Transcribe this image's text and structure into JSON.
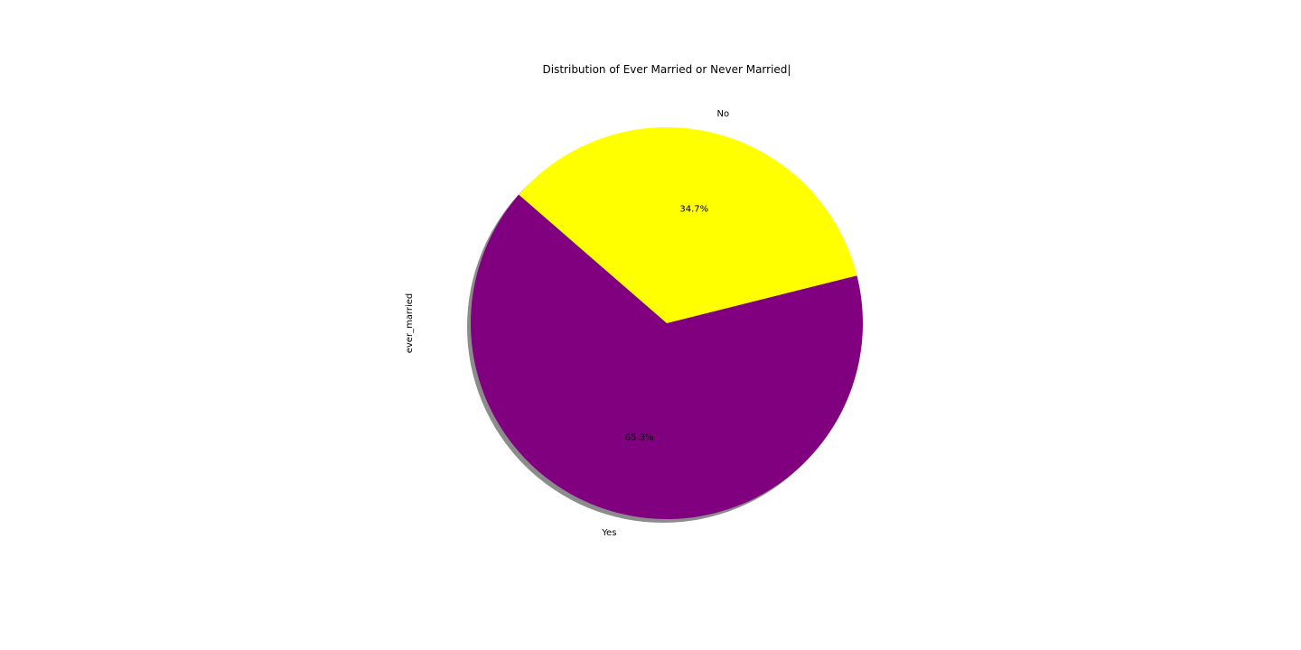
{
  "chart_data": {
    "type": "pie",
    "title": "Distribution of Ever Married or Never Married|",
    "ylabel": "ever_married",
    "categories": [
      "Yes",
      "No"
    ],
    "values": [
      65.3,
      34.7
    ],
    "percent_labels": [
      "65.3%",
      "34.7%"
    ],
    "colors": [
      "#800080",
      "#ffff00"
    ],
    "shadow": true,
    "legend": "none"
  }
}
